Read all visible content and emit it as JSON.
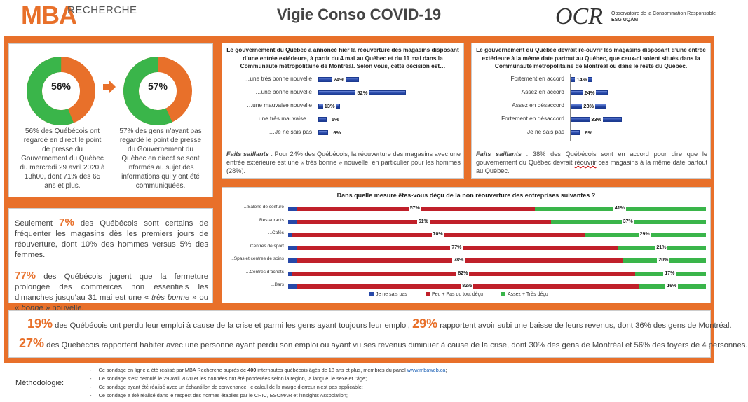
{
  "header": {
    "logo_mba": "MBA",
    "logo_recherche": "RECHERCHE",
    "title": "Vigie Conso COVID-19",
    "logo_ocr": "OCR",
    "ocr_line1": "Observatoire de la Consommation Responsable",
    "ocr_line2": "ESG UQÀM"
  },
  "colors": {
    "orange": "#e8702a",
    "green": "#3ab54a",
    "blue": "#2748a8",
    "red": "#c0202a"
  },
  "donuts": [
    {
      "pct_label": "56%",
      "value": 56,
      "text": "56% des Québécois ont regardé en direct le point de presse du Gouvernement du Québec du mercredi 29 avril 2020 à 13h00, dont 71% des 65 ans et plus."
    },
    {
      "pct_label": "57%",
      "value": 57,
      "text": "57% des gens n’ayant pas regardé le point de presse du Gouvernement du Québec en direct se sont informés au sujet des informations qui y ont été communiquées."
    }
  ],
  "arrow_icon": "arrow-right-icon",
  "text_panel": {
    "p1_pre": "Seulement ",
    "p1_num": "7%",
    "p1_post": " des Québécois sont certains de fréquenter les magasins dès les premiers jours de réouverture, dont 10% des hommes versus 5% des femmes.",
    "p2_num": "77%",
    "p2_a": " des Québécois jugent que la fermeture prolongée des commerces non essentiels les dimanches jusqu’au 31 mai est une « ",
    "p2_b": "très bonne",
    "p2_c": " » ou « ",
    "p2_d": "bonne",
    "p2_e": " » nouvelle."
  },
  "q1": {
    "title": "Le gouvernement du Québec a annoncé hier la réouverture des magasins disposant d’une entrée extérieure, à partir du 4 mai au Québec et du 11 mai dans la Communauté métropolitaine de Montréal. Selon vous, cette décision est…",
    "note_label": "Faits saillants",
    "note_text": " : Pour 24% des Québécois, la réouverture des magasins avec une entrée extérieure est une « très bonne » nouvelle, en particulier pour les hommes (28%)."
  },
  "q2": {
    "title": "Le gouvernement du Québec devrait ré-ouvrir les magasins disposant d’une entrée extérieure à la même date partout au Québec, que ceux-ci soient situés dans la Communauté métropolitaine de Montréal ou dans le reste du Québec.",
    "note_label": "Faits saillants",
    "note_a": " : 38% des Québécois sont en accord pour dire que le gouvernement du Québec devrait ",
    "note_b": "réouvrir",
    "note_c": " ces magasins à la même date partout au Québec."
  },
  "chart_data": [
    {
      "type": "bar",
      "orientation": "horizontal",
      "categories": [
        "…une très bonne nouvelle",
        "…une bonne nouvelle",
        "…une mauvaise nouvelle",
        "…une très mauvaise…",
        "…Je ne sais pas"
      ],
      "values": [
        24,
        52,
        13,
        5,
        6
      ],
      "labels": [
        "24%",
        "52%",
        "13%",
        "5%",
        "6%"
      ]
    },
    {
      "type": "bar",
      "orientation": "horizontal",
      "categories": [
        "Fortement en accord",
        "Assez en accord",
        "Assez en désaccord",
        "Fortement en désaccord",
        "Je ne sais pas"
      ],
      "values": [
        14,
        24,
        23,
        33,
        6
      ],
      "labels": [
        "14%",
        "24%",
        "23%",
        "33%",
        "6%"
      ]
    },
    {
      "type": "bar",
      "orientation": "horizontal",
      "stacked": true,
      "title": "Dans quelle mesure êtes-vous déçu de la non réouverture des entreprises suivantes ?",
      "categories": [
        "...Salons de coiffure",
        "...Restaurants",
        "...Cafés",
        "...Centres de sport",
        "...Spas et centres de soins",
        "...Centres d’achats",
        "...Bars"
      ],
      "series": [
        {
          "name": "Je ne sais pas",
          "values": [
            2,
            2,
            1,
            2,
            2,
            1,
            2
          ]
        },
        {
          "name": "Peu + Pas du tout déçu",
          "values": [
            57,
            61,
            70,
            77,
            78,
            82,
            82
          ],
          "labels": [
            "57%",
            "61%",
            "70%",
            "77%",
            "78%",
            "82%",
            "82%"
          ]
        },
        {
          "name": "Assez + Très déçu",
          "values": [
            41,
            37,
            29,
            21,
            20,
            17,
            16
          ],
          "labels": [
            "41%",
            "37%",
            "29%",
            "21%",
            "20%",
            "17%",
            "16%"
          ]
        }
      ],
      "legend": "bottom"
    }
  ],
  "footer": {
    "l1_num": "19%",
    "l1_a": " des Québécois ont perdu leur emploi à cause de la crise et parmi les gens ayant toujours leur emploi, ",
    "l1_num2": "29%",
    "l1_b": " rapportent avoir subi une baisse de leurs revenus, dont 36% des gens de Montréal.",
    "l2_num": "27%",
    "l2_a": " des Québécois rapportent habiter avec une personne ayant perdu son emploi ou ayant vu ses revenus diminuer à cause de la crise, dont 30% des gens de Montréal et 56% des foyers de 4 personnes."
  },
  "methodology": {
    "label": "Méthodologie:",
    "bullet": "-",
    "l1_a": "Ce sondage en ligne a été réalisé par MBA Recherche auprès de ",
    "l1_b": "400",
    "l1_c": " internautes québécois âgés de 18 ans et plus, membres du panel ",
    "l1_link": "www.mbaweb.ca",
    "l1_d": ";",
    "l2": "Ce sondage s’est déroulé le 29 avril 2020 et les données ont été pondérées selon la région, la langue, le sexe et l’âge;",
    "l3": "Ce sondage ayant été réalisé avec un échantillon de convenance, le calcul de la marge d’erreur n’est pas applicable;",
    "l4": "Ce sondage a été réalisé dans le respect des normes établies par le CRIC, ESOMAR et l’Insights Association;"
  }
}
